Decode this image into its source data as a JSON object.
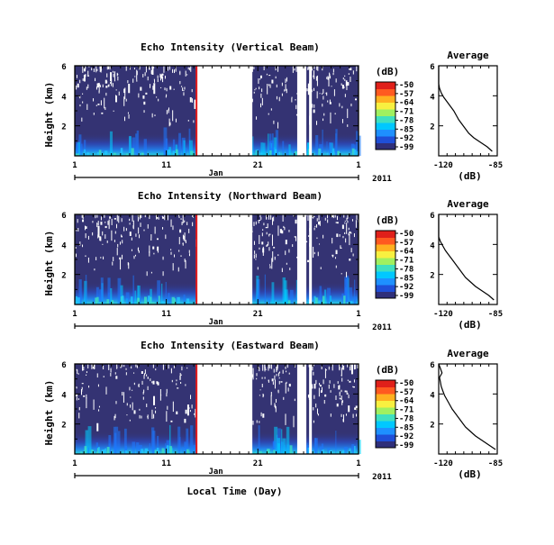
{
  "chart_data": {
    "type": "heatmap",
    "unit_label": "(dB)",
    "x_axis": {
      "tick_labels": [
        "1",
        "11",
        "21",
        "1"
      ],
      "tick_days": [
        1,
        11,
        21,
        32
      ],
      "range": [
        1,
        32
      ],
      "month_label": "Jan",
      "year_label": "2011",
      "xlabel": "Local Time (Day)"
    },
    "y_axis": {
      "ylabel": "Height (km)",
      "tick_labels": [
        "2",
        "4",
        "6"
      ],
      "tick_values": [
        2,
        4,
        6
      ],
      "range": [
        0,
        6
      ]
    },
    "colorbar": {
      "tick_labels": [
        "-50",
        "-57",
        "-64",
        "-71",
        "-78",
        "-85",
        "-92",
        "-99"
      ],
      "range": [
        -99,
        -50
      ],
      "colors": [
        "#2f2f7a",
        "#1f4fd8",
        "#1e90ff",
        "#00c8ff",
        "#3fe0c0",
        "#a0f060",
        "#f8f040",
        "#ffb020",
        "#ff5a20",
        "#e0201a"
      ]
    },
    "marker_day": 14.3,
    "marker_color": "#e41a1c",
    "data_gaps_days": [
      [
        14.3,
        20.4
      ],
      [
        25.3,
        26.3
      ],
      [
        26.6,
        26.9
      ]
    ],
    "profile": {
      "title": "Average",
      "xlabel": "(dB)",
      "tick_labels": [
        "-120",
        "-85"
      ],
      "xlim": [
        -120,
        -85
      ],
      "ylim": [
        0,
        6
      ],
      "y_tick_labels": [
        "2",
        "4",
        "6"
      ]
    },
    "panels": [
      {
        "title": "Echo Intensity (Vertical Beam)",
        "profile_y": [
          0.3,
          0.6,
          0.9,
          1.2,
          1.5,
          1.8,
          2.1,
          2.4,
          2.7,
          3.0,
          3.3,
          3.6,
          3.9,
          4.2,
          4.5,
          4.8,
          5.1,
          5.4,
          5.7,
          6.0
        ],
        "profile_x": [
          -88,
          -91,
          -95,
          -99,
          -102,
          -104,
          -106,
          -108,
          -109.5,
          -111,
          -113,
          -115,
          -117,
          -118.5,
          -119.5,
          -120,
          -120,
          -120,
          -120,
          -120
        ]
      },
      {
        "title": "Echo Intensity (Northward Beam)",
        "profile_y": [
          0.3,
          0.6,
          0.9,
          1.2,
          1.5,
          1.8,
          2.1,
          2.4,
          2.7,
          3.0,
          3.3,
          3.6,
          3.9,
          4.2,
          4.5,
          4.8,
          5.1,
          5.4,
          5.7,
          6.0
        ],
        "profile_x": [
          -87,
          -90,
          -94,
          -98,
          -101,
          -104,
          -106,
          -108,
          -110,
          -112,
          -114,
          -116,
          -117.5,
          -119,
          -120,
          -120,
          -120,
          -120,
          -120,
          -120
        ]
      },
      {
        "title": "Echo Intensity (Eastward Beam)",
        "profile_y": [
          0.3,
          0.6,
          0.9,
          1.2,
          1.5,
          1.8,
          2.1,
          2.4,
          2.7,
          3.0,
          3.3,
          3.6,
          3.9,
          4.2,
          4.5,
          4.8,
          5.1,
          5.4,
          5.7,
          6.0
        ],
        "profile_x": [
          -86,
          -90,
          -94,
          -98,
          -101,
          -104,
          -106,
          -108,
          -110,
          -112,
          -113.5,
          -115,
          -116.5,
          -117.5,
          -118.5,
          -119,
          -119.5,
          -118,
          -119,
          -120
        ]
      }
    ]
  }
}
